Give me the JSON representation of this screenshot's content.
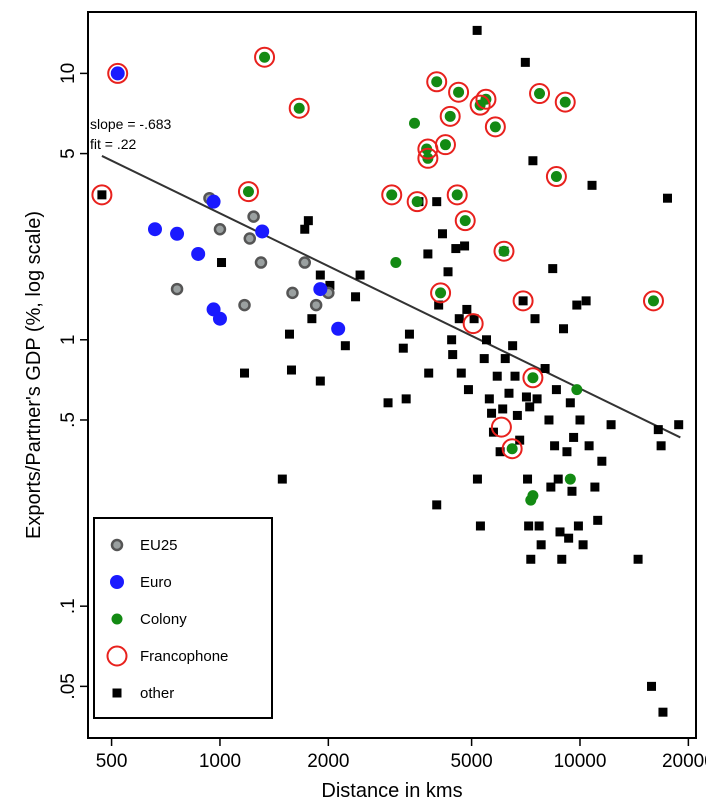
{
  "chart_data": {
    "type": "scatter",
    "xlabel": "Distance in kms",
    "ylabel": "Exports/Partner's GDP (%, log scale)",
    "x_scale": "log",
    "y_scale": "log",
    "xlim": [
      430,
      21000
    ],
    "ylim": [
      0.032,
      17
    ],
    "x_ticks": [
      {
        "value": 500,
        "label": "500"
      },
      {
        "value": 1000,
        "label": "1000"
      },
      {
        "value": 2000,
        "label": "2000"
      },
      {
        "value": 5000,
        "label": "5000"
      },
      {
        "value": 10000,
        "label": "10000"
      },
      {
        "value": 20000,
        "label": "20000"
      }
    ],
    "y_ticks": [
      {
        "value": 0.05,
        "label": ".05"
      },
      {
        "value": 0.1,
        "label": ".1"
      },
      {
        "value": 0.5,
        "label": ".5"
      },
      {
        "value": 1,
        "label": "1"
      },
      {
        "value": 5,
        "label": "5"
      },
      {
        "value": 10,
        "label": "10"
      }
    ],
    "annotation": {
      "slope_text": "slope = -.683",
      "fit_text": "fit = .22"
    },
    "fit_line": {
      "x": [
        470,
        19000
      ],
      "y": [
        4.9,
        0.43
      ]
    },
    "colors": {
      "eu25": "#555555",
      "euro": "#1a1aff",
      "colony": "#138a13",
      "francophone": "#e8211d",
      "other": "#000000"
    },
    "legend": {
      "position": "bottom-left",
      "entries": [
        {
          "key": "eu25",
          "label": "EU25"
        },
        {
          "key": "euro",
          "label": "Euro"
        },
        {
          "key": "colony",
          "label": "Colony"
        },
        {
          "key": "francophone",
          "label": "Francophone"
        },
        {
          "key": "other",
          "label": "other"
        }
      ]
    },
    "series": [
      {
        "key": "eu25",
        "points": [
          [
            935,
            3.4
          ],
          [
            1000,
            2.6
          ],
          [
            1240,
            2.9
          ],
          [
            1210,
            2.4
          ],
          [
            1300,
            1.95
          ],
          [
            1720,
            1.95
          ],
          [
            1590,
            1.5
          ],
          [
            1850,
            1.35
          ],
          [
            2000,
            1.5
          ],
          [
            1170,
            1.35
          ],
          [
            760,
            1.55
          ]
        ]
      },
      {
        "key": "euro",
        "points": [
          [
            520,
            10
          ],
          [
            660,
            2.6
          ],
          [
            760,
            2.5
          ],
          [
            870,
            2.1
          ],
          [
            960,
            3.3
          ],
          [
            1310,
            2.55
          ],
          [
            960,
            1.3
          ],
          [
            1000,
            1.2
          ],
          [
            1900,
            1.55
          ],
          [
            2130,
            1.1
          ]
        ]
      },
      {
        "key": "colony",
        "points": [
          [
            1330,
            11.5
          ],
          [
            1660,
            7.4
          ],
          [
            1200,
            3.6
          ],
          [
            3000,
            3.5
          ],
          [
            3080,
            1.95
          ],
          [
            3470,
            6.5
          ],
          [
            3530,
            3.3
          ],
          [
            3780,
            4.8
          ],
          [
            4000,
            9.3
          ],
          [
            4100,
            1.5
          ],
          [
            4230,
            5.4
          ],
          [
            4360,
            6.9
          ],
          [
            4600,
            8.5
          ],
          [
            4560,
            3.5
          ],
          [
            4800,
            2.8
          ],
          [
            5280,
            7.6
          ],
          [
            5480,
            8.0
          ],
          [
            5820,
            6.3
          ],
          [
            6150,
            2.15
          ],
          [
            6480,
            0.39
          ],
          [
            7300,
            0.25
          ],
          [
            7400,
            0.72
          ],
          [
            7720,
            8.4
          ],
          [
            8600,
            4.1
          ],
          [
            9100,
            7.8
          ],
          [
            9800,
            0.65
          ],
          [
            7400,
            0.26
          ],
          [
            9400,
            0.3
          ],
          [
            16000,
            1.4
          ],
          [
            3750,
            5.2
          ]
        ]
      },
      {
        "key": "francophone",
        "points": [
          [
            470,
            3.5
          ],
          [
            520,
            10
          ],
          [
            1330,
            11.5
          ],
          [
            1660,
            7.4
          ],
          [
            1200,
            3.6
          ],
          [
            3000,
            3.5
          ],
          [
            3530,
            3.3
          ],
          [
            3780,
            4.8
          ],
          [
            3780,
            5.2
          ],
          [
            4000,
            9.3
          ],
          [
            4100,
            1.5
          ],
          [
            4230,
            5.4
          ],
          [
            4360,
            6.9
          ],
          [
            4560,
            3.5
          ],
          [
            4600,
            8.5
          ],
          [
            4800,
            2.8
          ],
          [
            5050,
            1.15
          ],
          [
            5280,
            7.6
          ],
          [
            5480,
            8.0
          ],
          [
            5820,
            6.3
          ],
          [
            6050,
            0.47
          ],
          [
            6150,
            2.15
          ],
          [
            6480,
            0.39
          ],
          [
            6950,
            1.4
          ],
          [
            7400,
            0.72
          ],
          [
            7720,
            8.4
          ],
          [
            8600,
            4.1
          ],
          [
            9100,
            7.8
          ],
          [
            16000,
            1.4
          ]
        ]
      },
      {
        "key": "other",
        "points": [
          [
            470,
            3.5
          ],
          [
            1010,
            1.95
          ],
          [
            1170,
            0.75
          ],
          [
            1490,
            0.3
          ],
          [
            1560,
            1.05
          ],
          [
            1580,
            0.77
          ],
          [
            1720,
            2.6
          ],
          [
            1760,
            2.8
          ],
          [
            1800,
            1.2
          ],
          [
            1900,
            1.75
          ],
          [
            1900,
            0.7
          ],
          [
            2020,
            1.6
          ],
          [
            2230,
            0.95
          ],
          [
            2380,
            1.45
          ],
          [
            2450,
            1.75
          ],
          [
            2930,
            0.58
          ],
          [
            3230,
            0.93
          ],
          [
            3290,
            0.6
          ],
          [
            3360,
            1.05
          ],
          [
            3570,
            3.3
          ],
          [
            3780,
            2.1
          ],
          [
            3800,
            0.75
          ],
          [
            4000,
            3.3
          ],
          [
            4000,
            0.24
          ],
          [
            4050,
            1.35
          ],
          [
            4150,
            2.5
          ],
          [
            4300,
            1.8
          ],
          [
            4400,
            1.0
          ],
          [
            4430,
            0.88
          ],
          [
            4520,
            2.2
          ],
          [
            4620,
            1.2
          ],
          [
            4680,
            0.75
          ],
          [
            4780,
            2.25
          ],
          [
            4850,
            1.3
          ],
          [
            4900,
            0.65
          ],
          [
            5080,
            1.2
          ],
          [
            5180,
            14.5
          ],
          [
            5190,
            0.3
          ],
          [
            5290,
            0.2
          ],
          [
            5420,
            0.85
          ],
          [
            5500,
            1.0
          ],
          [
            5600,
            0.6
          ],
          [
            5680,
            0.53
          ],
          [
            5750,
            0.45
          ],
          [
            5890,
            0.73
          ],
          [
            6000,
            0.38
          ],
          [
            6100,
            0.55
          ],
          [
            6150,
            2.15
          ],
          [
            6200,
            0.85
          ],
          [
            6350,
            0.63
          ],
          [
            6500,
            0.95
          ],
          [
            6600,
            0.73
          ],
          [
            6700,
            0.52
          ],
          [
            6800,
            0.42
          ],
          [
            6950,
            1.4
          ],
          [
            7050,
            11
          ],
          [
            7100,
            0.61
          ],
          [
            7150,
            0.3
          ],
          [
            7200,
            0.2
          ],
          [
            7250,
            0.56
          ],
          [
            7300,
            0.15
          ],
          [
            7400,
            4.7
          ],
          [
            7500,
            1.2
          ],
          [
            7600,
            0.6
          ],
          [
            7700,
            0.2
          ],
          [
            7800,
            0.17
          ],
          [
            8000,
            0.78
          ],
          [
            8200,
            0.5
          ],
          [
            8300,
            0.28
          ],
          [
            8400,
            1.85
          ],
          [
            8500,
            0.4
          ],
          [
            8600,
            0.65
          ],
          [
            8700,
            0.3
          ],
          [
            8800,
            0.19
          ],
          [
            8900,
            0.15
          ],
          [
            9000,
            1.1
          ],
          [
            9200,
            0.38
          ],
          [
            9300,
            0.18
          ],
          [
            9400,
            0.58
          ],
          [
            9500,
            0.27
          ],
          [
            9600,
            0.43
          ],
          [
            9800,
            1.35
          ],
          [
            9900,
            0.2
          ],
          [
            10000,
            0.5
          ],
          [
            10200,
            0.17
          ],
          [
            10400,
            1.4
          ],
          [
            10600,
            0.4
          ],
          [
            10800,
            3.8
          ],
          [
            11000,
            0.28
          ],
          [
            11200,
            0.21
          ],
          [
            11500,
            0.35
          ],
          [
            12200,
            0.48
          ],
          [
            14500,
            0.15
          ],
          [
            15800,
            0.05
          ],
          [
            16500,
            0.46
          ],
          [
            16800,
            0.4
          ],
          [
            17000,
            0.04
          ],
          [
            17500,
            3.4
          ],
          [
            18800,
            0.48
          ]
        ]
      }
    ]
  }
}
